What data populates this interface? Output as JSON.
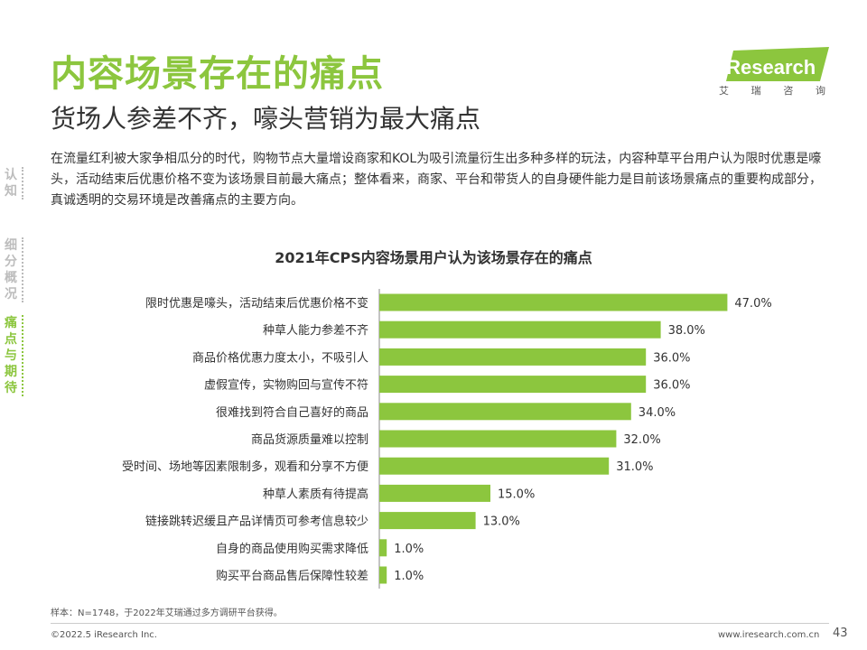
{
  "header": {
    "title": "内容场景存在的痛点",
    "subtitle": "货场人参差不齐，嚎头营销为最大痛点"
  },
  "logo": {
    "text": "iResearch",
    "sub": [
      "艾",
      "瑞",
      "咨",
      "询"
    ]
  },
  "side_nav": [
    {
      "label": "认知",
      "chars": [
        "认",
        "知"
      ],
      "active": false
    },
    {
      "label": "细分概况",
      "chars": [
        "细",
        "分",
        "概",
        "况"
      ],
      "active": false
    },
    {
      "label": "痛点与期待",
      "chars": [
        "痛",
        "点",
        "与",
        "期",
        "待"
      ],
      "active": true
    }
  ],
  "body_text": "在流量红利被大家争相瓜分的时代，购物节点大量增设商家和KOL为吸引流量衍生出多种多样的玩法，内容种草平台用户认为限时优惠是嚎头，活动结束后优惠价格不变为该场景目前最大痛点；整体看来，商家、平台和带货人的自身硬件能力是目前该场景痛点的重要构成部分，真诚透明的交易环境是改善痛点的主要方向。",
  "chart_data": {
    "type": "bar",
    "orientation": "horizontal",
    "title": "2021年CPS内容场景用户认为该场景存在的痛点",
    "categories": [
      "限时优惠是嚎头，活动结束后优惠价格不变",
      "种草人能力参差不齐",
      "商品价格优惠力度太小，不吸引人",
      "虚假宣传，实物购回与宣传不符",
      "很难找到符合自己喜好的商品",
      "商品货源质量难以控制",
      "受时间、场地等因素限制多，观看和分享不方便",
      "种草人素质有待提高",
      "链接跳转迟缓且产品详情页可参考信息较少",
      "自身的商品使用购买需求降低",
      "购买平台商品售后保障性较差"
    ],
    "values": [
      47.0,
      38.0,
      36.0,
      36.0,
      34.0,
      32.0,
      31.0,
      15.0,
      13.0,
      1.0,
      1.0
    ],
    "value_labels": [
      "47.0%",
      "38.0%",
      "36.0%",
      "36.0%",
      "34.0%",
      "32.0%",
      "31.0%",
      "15.0%",
      "13.0%",
      "1.0%",
      "1.0%"
    ],
    "unit": "%",
    "xlim": [
      0,
      100
    ],
    "bar_color": "#8cc63e",
    "grid": false,
    "legend": "none"
  },
  "footnote": "样本：N=1748，于2022年艾瑞通过多方调研平台获得。",
  "footer": {
    "copyright": "©2022.5 iResearch Inc.",
    "url": "www.iresearch.com.cn",
    "page": "43"
  },
  "colors": {
    "accent": "#8cc63e",
    "text": "#333333",
    "muted": "#bdbdbd"
  }
}
